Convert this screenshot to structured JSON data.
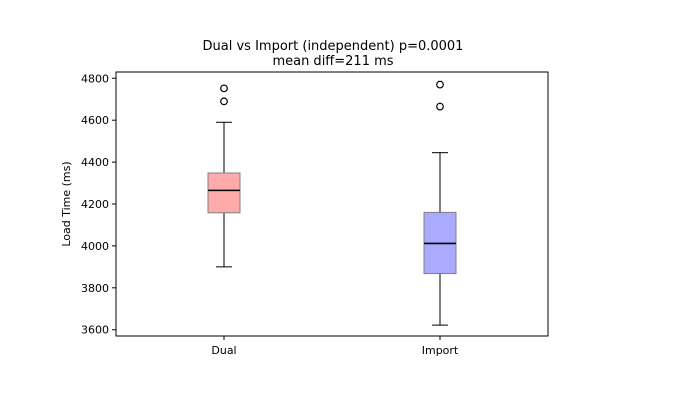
{
  "chart_data": {
    "type": "box",
    "title": "Dual vs Import (independent)  p=0.0001",
    "subtitle": "mean diff=211 ms",
    "xlabel": "",
    "ylabel": "Load Time (ms)",
    "ylim": [
      3570,
      4830
    ],
    "yticks": [
      3600,
      3800,
      4000,
      4200,
      4400,
      4600,
      4800
    ],
    "grid": false,
    "categories": [
      "Dual",
      "Import"
    ],
    "boxes": [
      {
        "category": "Dual",
        "whisker_low": 3900,
        "q1": 4158,
        "median": 4265,
        "q3": 4348,
        "whisker_high": 4590,
        "outliers": [
          4690,
          4752
        ],
        "color": "#ffaaaa"
      },
      {
        "category": "Import",
        "whisker_low": 3622,
        "q1": 3868,
        "median": 4012,
        "q3": 4160,
        "whisker_high": 4445,
        "outliers": [
          4665,
          4770
        ],
        "color": "#aaaaff"
      }
    ]
  }
}
